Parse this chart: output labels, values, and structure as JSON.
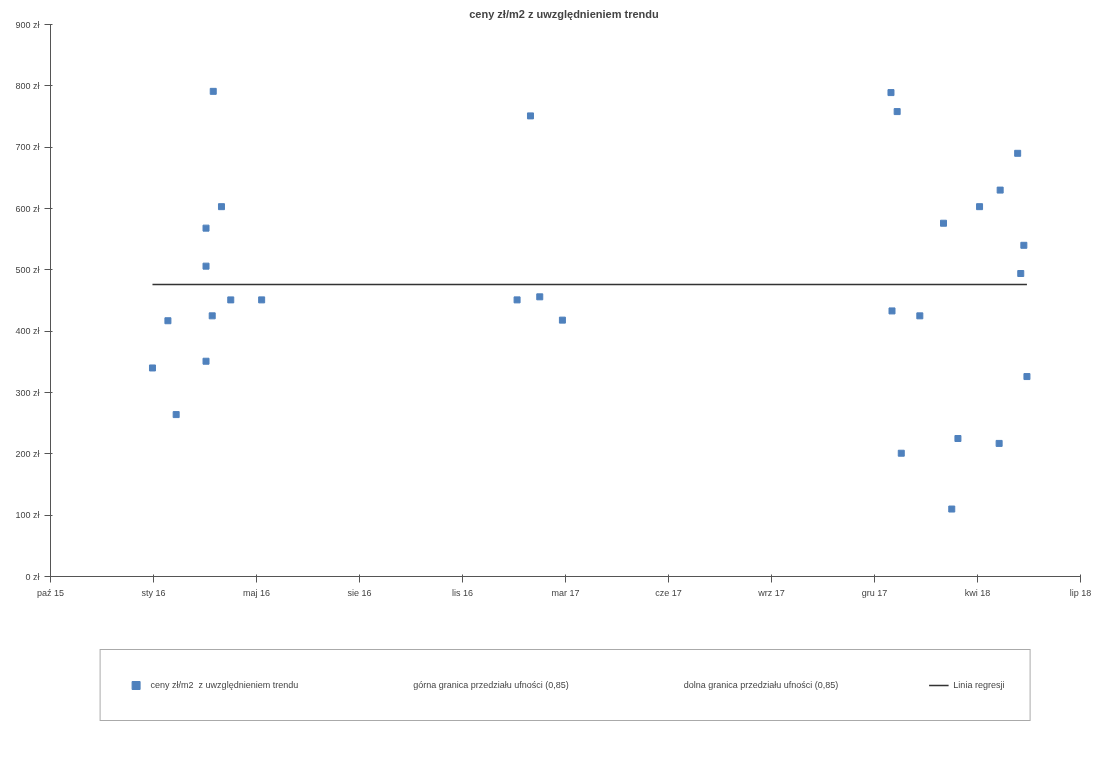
{
  "chart_data": {
    "type": "scatter",
    "title": "ceny zł/m2  z uwzględnieniem trendu",
    "xlim": [
      "2015-10-20",
      "2018-07-16"
    ],
    "xticks": [
      {
        "value": "2015-10-20",
        "label": "paź 15"
      },
      {
        "value": "2016-01-28",
        "label": "sty 16"
      },
      {
        "value": "2016-05-07",
        "label": "maj 16"
      },
      {
        "value": "2016-08-15",
        "label": "sie 16"
      },
      {
        "value": "2016-11-23",
        "label": "lis 16"
      },
      {
        "value": "2017-03-03",
        "label": "mar 17"
      },
      {
        "value": "2017-06-11",
        "label": "cze 17"
      },
      {
        "value": "2017-09-19",
        "label": "wrz 17"
      },
      {
        "value": "2017-12-28",
        "label": "gru 17"
      },
      {
        "value": "2018-04-07",
        "label": "kwi 18"
      },
      {
        "value": "2018-07-16",
        "label": "lip 18"
      }
    ],
    "ylim": [
      0,
      900
    ],
    "yticks": [
      {
        "value": 0,
        "label": "0 zł"
      },
      {
        "value": 100,
        "label": "100 zł"
      },
      {
        "value": 200,
        "label": "200 zł"
      },
      {
        "value": 300,
        "label": "300 zł"
      },
      {
        "value": 400,
        "label": "400 zł"
      },
      {
        "value": 500,
        "label": "500 zł"
      },
      {
        "value": 600,
        "label": "600 zł"
      },
      {
        "value": 700,
        "label": "700 zł"
      },
      {
        "value": 800,
        "label": "800 zł"
      },
      {
        "value": 900,
        "label": "900 zł"
      }
    ],
    "grid": false,
    "legend": "bottom",
    "annotations": [
      "górna granica przedziału ufności (0,85)",
      "dolna granica przedziału ufności (0,85)"
    ],
    "series": [
      {
        "name": "ceny zł/m2  z uwzględnieniem trendu",
        "marker": "square",
        "color": "#4f81bd",
        "x": [
          "2016-01-27",
          "2016-02-11",
          "2016-02-19",
          "2016-03-19",
          "2016-03-19",
          "2016-03-25",
          "2016-03-26",
          "2016-03-19",
          "2016-04-03",
          "2016-04-12",
          "2016-05-12",
          "2017-01-15",
          "2017-01-28",
          "2017-02-06",
          "2017-02-28",
          "2018-01-13",
          "2018-01-19",
          "2018-01-14",
          "2018-01-23",
          "2018-02-10",
          "2018-03-05",
          "2018-03-13",
          "2018-03-19",
          "2018-04-09",
          "2018-04-28",
          "2018-04-29",
          "2018-05-16",
          "2018-05-19",
          "2018-05-22",
          "2018-05-25"
        ],
        "values": [
          340,
          417,
          264,
          506,
          351,
          425,
          791,
          568,
          603,
          451,
          451,
          451,
          751,
          456,
          418,
          789,
          758,
          433,
          201,
          425,
          576,
          110,
          225,
          603,
          217,
          630,
          690,
          494,
          540,
          326
        ]
      },
      {
        "name": "Linia regresji",
        "type": "line",
        "color": "#333333",
        "x": [
          "2016-01-27",
          "2018-05-25"
        ],
        "values": [
          476,
          476
        ]
      }
    ]
  }
}
